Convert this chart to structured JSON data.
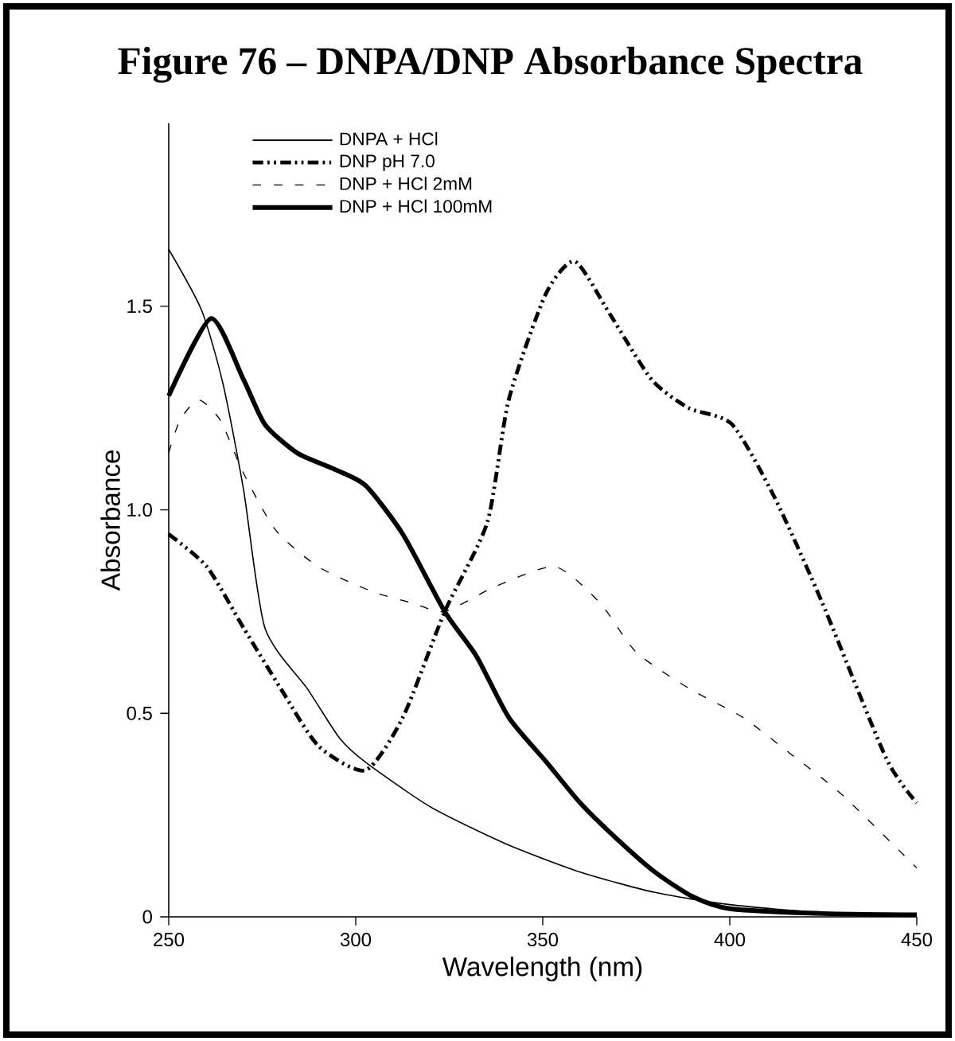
{
  "chart_data": {
    "type": "line",
    "title": "Figure 76 – DNPA/DNP Absorbance Spectra",
    "xlabel": "Wavelength (nm)",
    "ylabel": "Absorbance",
    "xlim": [
      250,
      450
    ],
    "ylim": [
      0,
      1.95
    ],
    "xticks": [
      250,
      300,
      350,
      400,
      450
    ],
    "yticks": [
      0,
      0.5,
      {
        "value": 1,
        "label": "1.0"
      },
      1.5
    ],
    "legend": "top left",
    "grid": false,
    "marker": "none",
    "series": [
      {
        "name": "DNPA + HCl",
        "color": "#000000",
        "line_style": "solid",
        "x": [
          250,
          258.8,
          264.5,
          270,
          275.7,
          287.1,
          295.6,
          302.6,
          320,
          340,
          360,
          380,
          400,
          425,
          450
        ],
        "values": [
          1.64,
          1.49,
          1.31,
          1.05,
          0.71,
          0.56,
          0.44,
          0.38,
          0.27,
          0.18,
          0.11,
          0.06,
          0.03,
          0.01,
          0.005
        ]
      },
      {
        "name": "DNP pH 7.0",
        "color": "#000000",
        "line_style": "dashdotdotted",
        "x": [
          250,
          260.2,
          270,
          280,
          290,
          302.6,
          312.6,
          323.8,
          335.2,
          340.9,
          350.8,
          358.6,
          368,
          379.1,
          389,
          400.6,
          412,
          424.8,
          441.8,
          450
        ],
        "values": [
          0.94,
          0.86,
          0.71,
          0.56,
          0.42,
          0.36,
          0.49,
          0.75,
          0.97,
          1.27,
          1.53,
          1.61,
          1.48,
          1.32,
          1.25,
          1.21,
          1.03,
          0.77,
          0.39,
          0.28
        ]
      },
      {
        "name": "DNP + HCl 2mM",
        "color": "#000000",
        "line_style": "dashed",
        "x": [
          250,
          253,
          258,
          263.8,
          270,
          278.6,
          290,
          304.2,
          315.5,
          323.8,
          337,
          353.3,
          365.4,
          375,
          389.3,
          403.5,
          416.3,
          430,
          450
        ],
        "values": [
          1.14,
          1.22,
          1.27,
          1.22,
          1.09,
          0.95,
          0.86,
          0.8,
          0.77,
          0.75,
          0.81,
          0.86,
          0.77,
          0.65,
          0.56,
          0.49,
          0.4,
          0.3,
          0.12
        ]
      },
      {
        "name": "DNP + HCl 100mM",
        "color": "#000000",
        "line_style": "solid",
        "x": [
          250,
          261.3,
          270,
          275.7,
          284.3,
          294.2,
          302.6,
          312.6,
          323.8,
          332.3,
          340.9,
          351,
          360,
          370,
          380,
          390,
          400,
          425,
          450
        ],
        "values": [
          1.28,
          1.47,
          1.32,
          1.21,
          1.14,
          1.1,
          1.06,
          0.94,
          0.75,
          0.64,
          0.49,
          0.38,
          0.28,
          0.19,
          0.11,
          0.05,
          0.02,
          0.008,
          0.005
        ]
      }
    ]
  }
}
